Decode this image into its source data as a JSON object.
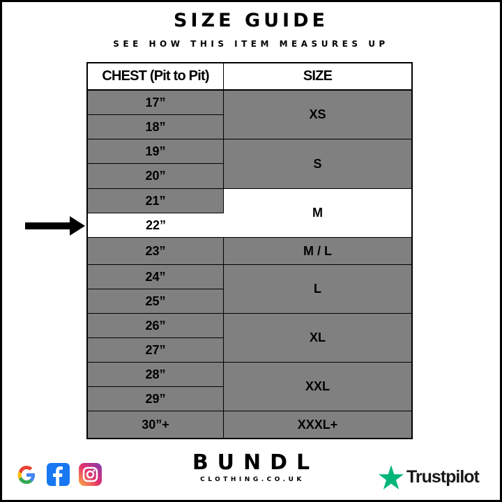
{
  "header": {
    "title": "SIZE GUIDE",
    "subtitle": "SEE HOW THIS ITEM MEASURES UP"
  },
  "table": {
    "columns": [
      "CHEST (Pit to Pit)",
      "SIZE"
    ],
    "chest_rows": [
      "17”",
      "18”",
      "19”",
      "20”",
      "21”",
      "22”",
      "23”",
      "24”",
      "25”",
      "26”",
      "27”",
      "28”",
      "29”",
      "30”+"
    ],
    "size_groups": [
      {
        "label": "XS",
        "rows": [
          "17”",
          "18”"
        ]
      },
      {
        "label": "S",
        "rows": [
          "19”",
          "20”"
        ]
      },
      {
        "label": "M",
        "rows": [
          "21”",
          "22”"
        ]
      },
      {
        "label": "M / L",
        "rows": [
          "23”"
        ]
      },
      {
        "label": "L",
        "rows": [
          "24”",
          "25”"
        ]
      },
      {
        "label": "XL",
        "rows": [
          "26”",
          "27”"
        ]
      },
      {
        "label": "XXL",
        "rows": [
          "28”",
          "29”"
        ]
      },
      {
        "label": "XXXL+",
        "rows": [
          "30”+"
        ]
      }
    ],
    "highlighted_chest": "22”",
    "highlighted_size": "M",
    "colors": {
      "row": "#808080",
      "highlight": "#ffffff"
    }
  },
  "footer": {
    "brand": "BUNDL",
    "brand_sub": "CLOTHING.CO.UK",
    "social_icons": [
      "google-icon",
      "facebook-icon",
      "instagram-icon"
    ],
    "trustpilot": "Trustpilot",
    "trustpilot_color": "#00b67a"
  }
}
